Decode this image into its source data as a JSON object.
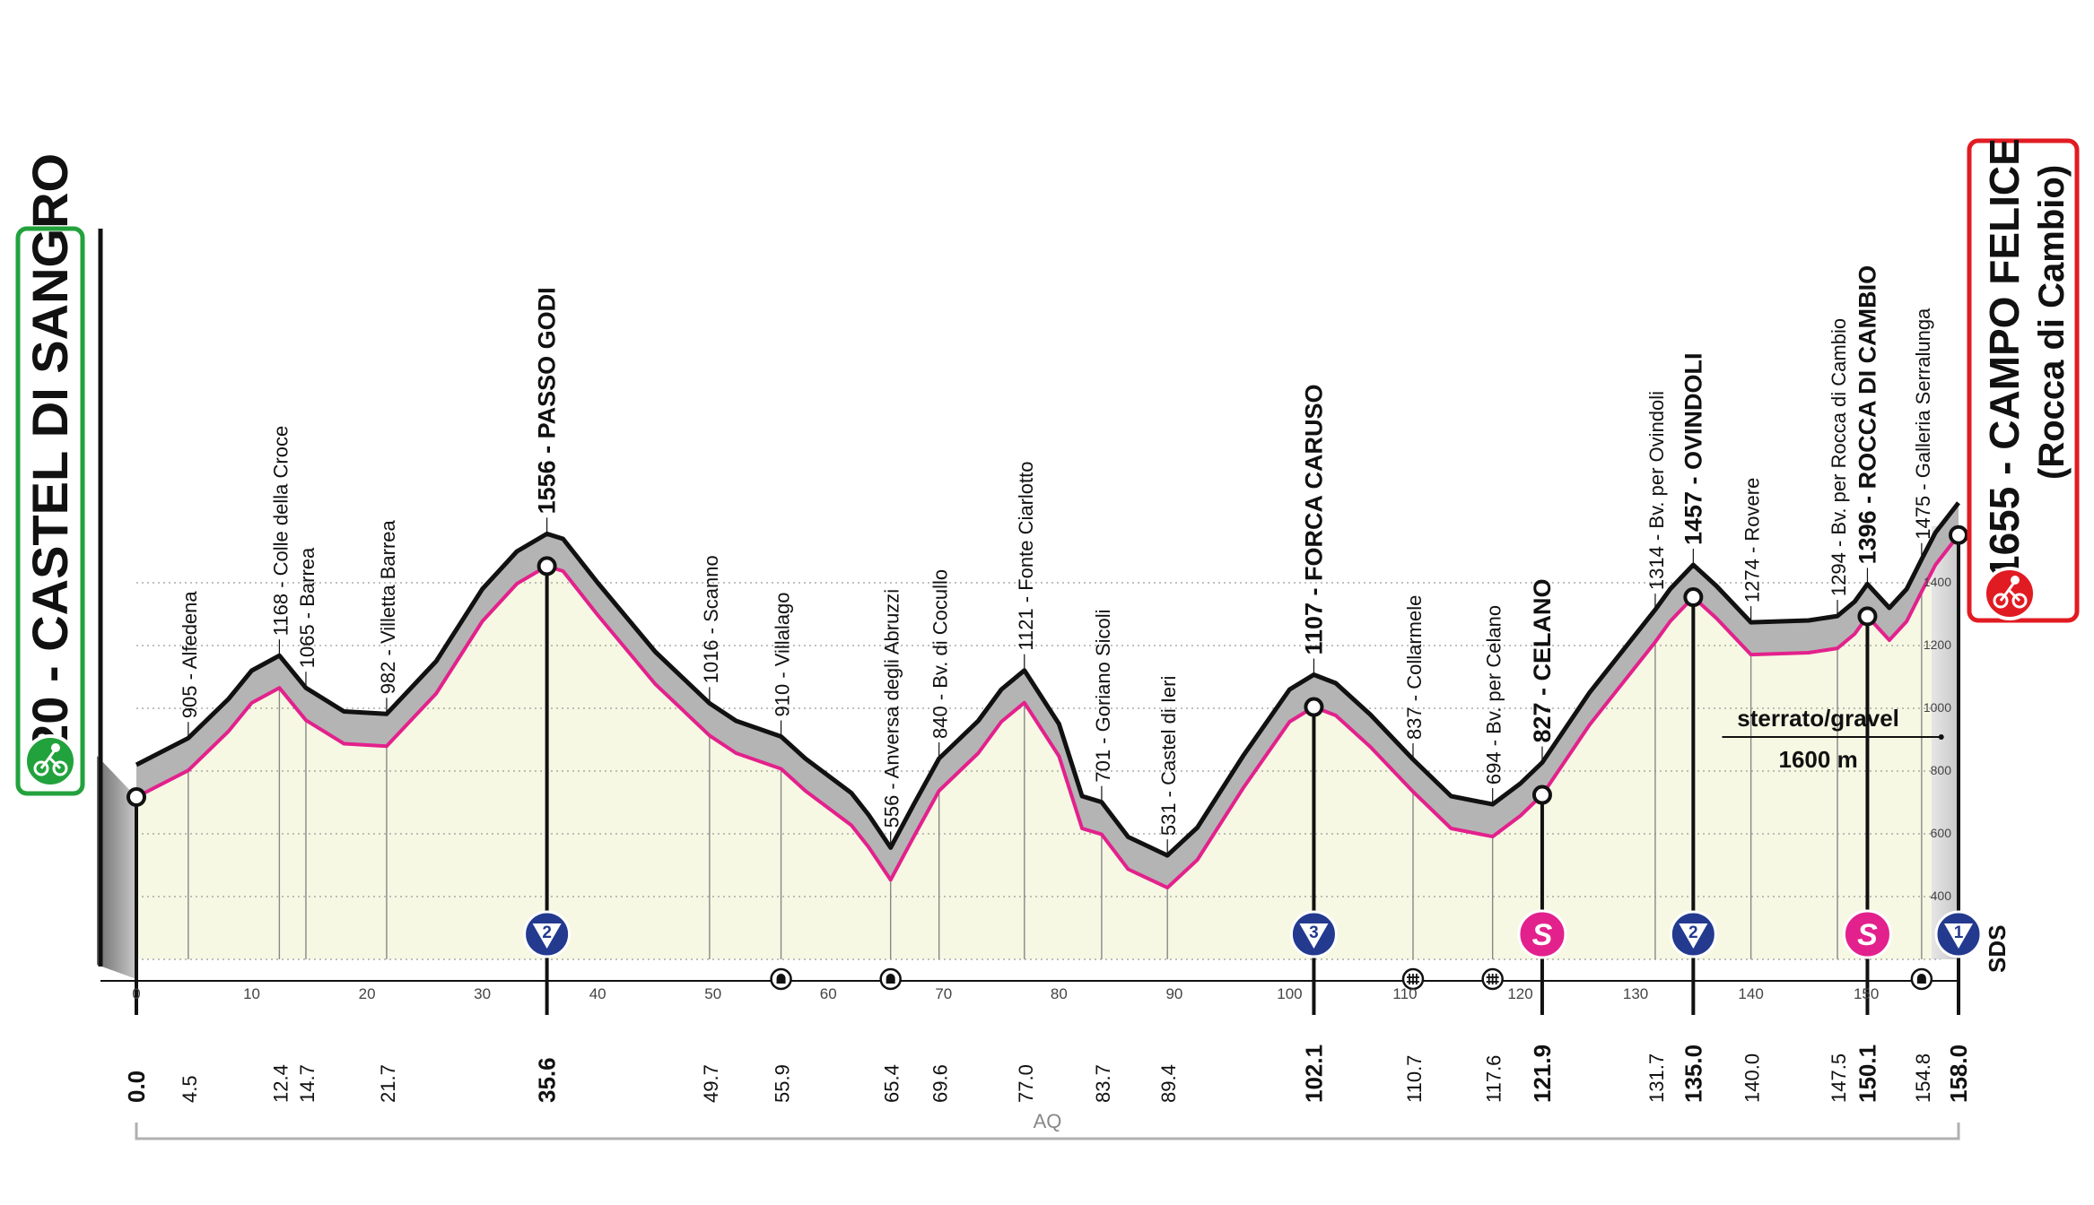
{
  "chart_data": {
    "type": "area",
    "start": {
      "elevation": "820",
      "name": "CASTEL DI SANGRO"
    },
    "finish": {
      "elevation": "1655",
      "name": "CAMPO FELICE",
      "sub": "(Rocca di Cambio)"
    },
    "xlim": [
      0,
      158.0
    ],
    "ylim": [
      300,
      1800
    ],
    "x_ticks": [
      0,
      10,
      20,
      30,
      40,
      50,
      60,
      70,
      80,
      90,
      100,
      110,
      120,
      130,
      140,
      150
    ],
    "y_ticks": [
      400,
      600,
      800,
      1000,
      1200,
      1400
    ],
    "profile": {
      "x": [
        0,
        4.5,
        8,
        10,
        12.4,
        14.7,
        18,
        21.7,
        26,
        30,
        33,
        35.6,
        37,
        40,
        45,
        49.7,
        52,
        55.9,
        58,
        62,
        63.5,
        65.4,
        67.5,
        69.6,
        73,
        75,
        77.0,
        80,
        82,
        83.7,
        86,
        89.4,
        92,
        96,
        100,
        102.1,
        104,
        107,
        110.7,
        114,
        117.6,
        120,
        121.9,
        126,
        131.7,
        133,
        135.0,
        137,
        140.0,
        145,
        147.5,
        149,
        150.1,
        152,
        153.5,
        154.8,
        156,
        158.0
      ],
      "y": [
        820,
        905,
        1030,
        1120,
        1168,
        1065,
        990,
        982,
        1150,
        1380,
        1500,
        1556,
        1540,
        1400,
        1180,
        1016,
        960,
        910,
        840,
        730,
        660,
        556,
        700,
        840,
        960,
        1060,
        1121,
        950,
        720,
        701,
        590,
        531,
        620,
        850,
        1060,
        1107,
        1080,
        980,
        837,
        720,
        694,
        760,
        827,
        1050,
        1314,
        1380,
        1457,
        1390,
        1274,
        1280,
        1294,
        1340,
        1396,
        1320,
        1380,
        1475,
        1560,
        1655
      ]
    },
    "km_labels": [
      "0.0",
      "4.5",
      "12.4",
      "14.7",
      "21.7",
      "35.6",
      "49.7",
      "55.9",
      "65.4",
      "69.6",
      "77.0",
      "83.7",
      "89.4",
      "102.1",
      "110.7",
      "117.6",
      "121.9",
      "131.7",
      "135.0",
      "140.0",
      "147.5",
      "150.1",
      "154.8",
      "158.0"
    ],
    "bold_km": [
      "0.0",
      "35.6",
      "102.1",
      "121.9",
      "135.0",
      "150.1",
      "158.0"
    ],
    "waypoints": [
      {
        "km": 4.5,
        "elev": 905,
        "text": "905 - Alfedena",
        "bold": false
      },
      {
        "km": 12.4,
        "elev": 1168,
        "text": "1168 - Colle della Croce",
        "bold": false
      },
      {
        "km": 14.7,
        "elev": 1065,
        "text": "1065 - Barrea",
        "bold": false
      },
      {
        "km": 21.7,
        "elev": 982,
        "text": "982 - Villetta Barrea",
        "bold": false
      },
      {
        "km": 35.6,
        "elev": 1556,
        "text": "1556 - PASSO GODI",
        "bold": true
      },
      {
        "km": 49.7,
        "elev": 1016,
        "text": "1016 - Scanno",
        "bold": false
      },
      {
        "km": 55.9,
        "elev": 910,
        "text": "910 - Villalago",
        "bold": false
      },
      {
        "km": 65.4,
        "elev": 556,
        "text": "556 - Anversa degli Abruzzi",
        "bold": false
      },
      {
        "km": 69.6,
        "elev": 840,
        "text": "840 - Bv. di Cocullo",
        "bold": false
      },
      {
        "km": 77.0,
        "elev": 1121,
        "text": "1121 - Fonte Ciarlotto",
        "bold": false
      },
      {
        "km": 83.7,
        "elev": 701,
        "text": "701 - Goriano Sicoli",
        "bold": false
      },
      {
        "km": 89.4,
        "elev": 531,
        "text": "531 - Castel di Ieri",
        "bold": false
      },
      {
        "km": 102.1,
        "elev": 1107,
        "text": "1107 - FORCA CARUSO",
        "bold": true
      },
      {
        "km": 110.7,
        "elev": 837,
        "text": "837 - Collarmele",
        "bold": false
      },
      {
        "km": 117.6,
        "elev": 694,
        "text": "694 - Bv. per Celano",
        "bold": false
      },
      {
        "km": 121.9,
        "elev": 827,
        "text": "827 - CELANO",
        "bold": true
      },
      {
        "km": 131.7,
        "elev": 1314,
        "text": "1314 - Bv. per Ovindoli",
        "bold": false
      },
      {
        "km": 135.0,
        "elev": 1457,
        "text": "1457 - OVINDOLI",
        "bold": true
      },
      {
        "km": 140.0,
        "elev": 1274,
        "text": "1274 - Rovere",
        "bold": false
      },
      {
        "km": 147.5,
        "elev": 1294,
        "text": "1294 - Bv. per Rocca di Cambio",
        "bold": false
      },
      {
        "km": 150.1,
        "elev": 1396,
        "text": "1396 - ROCCA DI CAMBIO",
        "bold": true
      },
      {
        "km": 154.8,
        "elev": 1475,
        "text": "1475 - Galleria Serralunga",
        "bold": false
      }
    ],
    "climbs": [
      {
        "km": 35.6,
        "label": "2"
      },
      {
        "km": 102.1,
        "label": "3"
      },
      {
        "km": 135.0,
        "label": "2"
      },
      {
        "km": 158.0,
        "label": "1"
      }
    ],
    "sprints": [
      {
        "km": 121.9,
        "label": "S"
      },
      {
        "km": 150.1,
        "label": "S"
      }
    ],
    "tunnels": [
      55.9,
      65.4,
      154.8
    ],
    "level_crossings": [
      110.7,
      117.6
    ],
    "gravel": {
      "line1": "sterrato/gravel",
      "line2": "1600 m",
      "from_km": 137.5,
      "to_km": 156.5
    },
    "province": "AQ",
    "logo": "SDS",
    "colors": {
      "profile_gray": "#b4b4b4",
      "area_fill": "#f6f8e3",
      "pink": "#e3218c",
      "green": "#22a23c",
      "red": "#e11b22",
      "blue": "#233a8f"
    }
  }
}
